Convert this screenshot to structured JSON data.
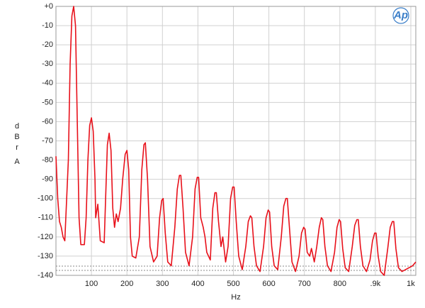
{
  "chart_data": {
    "type": "line",
    "logo": "Ap",
    "xlabel": "Hz",
    "ylabel": "dBr",
    "ylabel_weighting": "A",
    "xlim": [
      0,
      1014
    ],
    "ylim": [
      -140,
      0
    ],
    "xticks": [
      100,
      200,
      300,
      400,
      500,
      600,
      700,
      800,
      {
        "value": 900,
        "label": ".9k"
      },
      {
        "value": 1000,
        "label": "1k"
      }
    ],
    "yticks": [
      {
        "value": 0,
        "label": "+0"
      },
      -10,
      -20,
      -30,
      -40,
      -50,
      -60,
      -70,
      -80,
      -90,
      -100,
      -110,
      -120,
      -130,
      -140
    ],
    "grid": true,
    "series": [
      {
        "color": "#e8101a",
        "x": [
          0,
          5,
          10,
          15,
          20,
          25,
          35,
          40,
          45,
          50,
          55,
          60,
          65,
          70,
          80,
          85,
          90,
          95,
          100,
          105,
          110,
          112,
          118,
          125,
          136,
          140,
          145,
          150,
          155,
          160,
          165,
          170,
          175,
          182,
          188,
          195,
          200,
          205,
          210,
          215,
          225,
          235,
          242,
          248,
          252,
          258,
          265,
          275,
          285,
          292,
          298,
          302,
          308,
          315,
          325,
          335,
          342,
          348,
          352,
          358,
          365,
          375,
          385,
          392,
          398,
          402,
          408,
          415,
          420,
          425,
          435,
          442,
          448,
          452,
          458,
          465,
          470,
          478,
          485,
          492,
          498,
          502,
          508,
          515,
          525,
          535,
          542,
          548,
          552,
          558,
          565,
          575,
          585,
          592,
          598,
          602,
          608,
          615,
          625,
          635,
          642,
          648,
          652,
          658,
          665,
          675,
          685,
          692,
          698,
          702,
          708,
          715,
          720,
          728,
          735,
          742,
          748,
          752,
          758,
          765,
          775,
          785,
          792,
          798,
          802,
          808,
          815,
          825,
          835,
          842,
          848,
          852,
          858,
          865,
          875,
          885,
          892,
          898,
          902,
          908,
          915,
          925,
          935,
          942,
          948,
          952,
          958,
          965,
          975,
          985,
          995,
          1005,
          1014
        ],
        "values": [
          -78,
          -100,
          -112,
          -115,
          -120,
          -122,
          -80,
          -30,
          -5,
          0,
          -10,
          -60,
          -110,
          -124,
          -124,
          -110,
          -80,
          -62,
          -58,
          -65,
          -90,
          -110,
          -103,
          -122,
          -123,
          -100,
          -72,
          -66,
          -75,
          -105,
          -115,
          -108,
          -112,
          -105,
          -90,
          -77,
          -75,
          -85,
          -120,
          -130,
          -131,
          -120,
          -85,
          -72,
          -71,
          -90,
          -125,
          -133,
          -130,
          -110,
          -101,
          -100,
          -118,
          -133,
          -135,
          -115,
          -95,
          -88,
          -88,
          -105,
          -128,
          -135,
          -120,
          -95,
          -89,
          -89,
          -110,
          -115,
          -120,
          -128,
          -132,
          -105,
          -97,
          -97,
          -112,
          -125,
          -120,
          -133,
          -125,
          -100,
          -94,
          -94,
          -112,
          -130,
          -137,
          -125,
          -112,
          -109,
          -110,
          -125,
          -135,
          -138,
          -125,
          -110,
          -106,
          -107,
          -125,
          -135,
          -137,
          -120,
          -104,
          -100,
          -100,
          -115,
          -133,
          -138,
          -130,
          -118,
          -115,
          -116,
          -128,
          -130,
          -126,
          -133,
          -125,
          -115,
          -110,
          -111,
          -125,
          -135,
          -138,
          -128,
          -115,
          -111,
          -112,
          -126,
          -136,
          -138,
          -125,
          -114,
          -111,
          -111,
          -125,
          -135,
          -138,
          -132,
          -122,
          -118,
          -118,
          -130,
          -138,
          -140,
          -126,
          -115,
          -112,
          -112,
          -126,
          -136,
          -138,
          -137,
          -136,
          -135,
          -133
        ]
      }
    ]
  }
}
